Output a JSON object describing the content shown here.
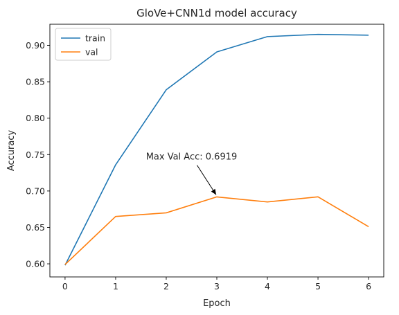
{
  "chart_data": {
    "type": "line",
    "title": "GloVe+CNN1d model accuracy",
    "xlabel": "Epoch",
    "ylabel": "Accuracy",
    "x": [
      0,
      1,
      2,
      3,
      4,
      5,
      6
    ],
    "xlim": [
      -0.3,
      6.3
    ],
    "ylim": [
      0.582,
      0.929
    ],
    "xticks": [
      0,
      1,
      2,
      3,
      4,
      5,
      6
    ],
    "yticks": [
      0.6,
      0.65,
      0.7,
      0.75,
      0.8,
      0.85,
      0.9
    ],
    "series": [
      {
        "name": "train",
        "color": "#1f77b4",
        "values": [
          0.598,
          0.736,
          0.839,
          0.891,
          0.912,
          0.915,
          0.914
        ]
      },
      {
        "name": "val",
        "color": "#ff7f0e",
        "values": [
          0.599,
          0.665,
          0.67,
          0.6919,
          0.685,
          0.692,
          0.651
        ]
      }
    ],
    "legend": "top-left",
    "grid": false,
    "annotation": {
      "text": "Max Val Acc: 0.6919",
      "point": {
        "x": 3,
        "y": 0.6919
      },
      "text_anchor": {
        "x": 2.5,
        "y": 0.743
      }
    }
  }
}
